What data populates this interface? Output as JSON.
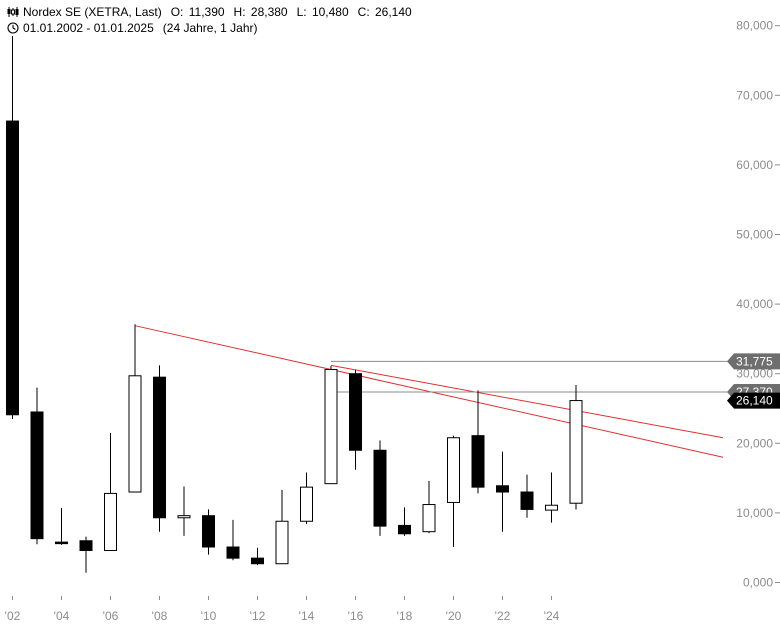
{
  "header": {
    "instrument": "Nordex SE (XETRA, Last)",
    "open_label": "O:",
    "open": "11,390",
    "high_label": "H:",
    "high": "28,380",
    "low_label": "L:",
    "low": "10,480",
    "close_label": "C:",
    "close": "26,140",
    "period": "01.01.2002 - 01.01.2025",
    "span": "(24 Jahre, 1 Jahr)",
    "icons": [
      "candlestick-chart-icon",
      "clock-icon"
    ]
  },
  "colors": {
    "bear_body": "#000000",
    "bull_body": "#ffffff",
    "wick": "#000000",
    "trendline": "#e03030",
    "level_line": "#8c8c8c",
    "level_tag": "#6e6e6e",
    "last_tag": "#000000",
    "axis_text": "#8c8c8c"
  },
  "chart_data": {
    "type": "candlestick",
    "interval": "yearly",
    "x_tick_labels": [
      "'02",
      "'04",
      "'06",
      "'08",
      "'10",
      "'12",
      "'14",
      "'16",
      "'18",
      "'20",
      "'22",
      "'24"
    ],
    "x_tick_years": [
      2002,
      2004,
      2006,
      2008,
      2010,
      2012,
      2014,
      2016,
      2018,
      2020,
      2022,
      2024
    ],
    "y_tick_labels": [
      "0,000",
      "10,000",
      "20,000",
      "30,000",
      "40,000",
      "50,000",
      "60,000",
      "70,000",
      "80,000"
    ],
    "y_ticks": [
      0,
      10,
      20,
      30,
      40,
      50,
      60,
      70,
      80
    ],
    "ylim": [
      -2.5,
      82
    ],
    "grid": false,
    "candles": [
      {
        "year": 2002,
        "open": 66.3,
        "high": 78.5,
        "low": 23.5,
        "close": 24.1
      },
      {
        "year": 2003,
        "open": 24.5,
        "high": 28.0,
        "low": 5.5,
        "close": 6.3
      },
      {
        "year": 2004,
        "open": 5.8,
        "high": 10.7,
        "low": 5.4,
        "close": 5.6
      },
      {
        "year": 2005,
        "open": 6.0,
        "high": 6.6,
        "low": 1.4,
        "close": 4.6
      },
      {
        "year": 2006,
        "open": 4.6,
        "high": 21.5,
        "low": 4.6,
        "close": 12.8
      },
      {
        "year": 2007,
        "open": 13.0,
        "high": 37.1,
        "low": 13.0,
        "close": 29.7
      },
      {
        "year": 2008,
        "open": 29.5,
        "high": 31.2,
        "low": 7.3,
        "close": 9.3
      },
      {
        "year": 2009,
        "open": 9.3,
        "high": 13.8,
        "low": 6.7,
        "close": 9.6
      },
      {
        "year": 2010,
        "open": 9.6,
        "high": 10.5,
        "low": 4.0,
        "close": 5.1
      },
      {
        "year": 2011,
        "open": 5.1,
        "high": 9.0,
        "low": 3.2,
        "close": 3.5
      },
      {
        "year": 2012,
        "open": 3.5,
        "high": 5.0,
        "low": 2.5,
        "close": 2.7
      },
      {
        "year": 2013,
        "open": 2.7,
        "high": 13.3,
        "low": 2.7,
        "close": 8.8
      },
      {
        "year": 2014,
        "open": 8.8,
        "high": 15.8,
        "low": 8.4,
        "close": 13.7
      },
      {
        "year": 2015,
        "open": 14.2,
        "high": 31.1,
        "low": 14.2,
        "close": 30.6
      },
      {
        "year": 2016,
        "open": 30.0,
        "high": 30.6,
        "low": 16.2,
        "close": 19.0
      },
      {
        "year": 2017,
        "open": 19.0,
        "high": 20.4,
        "low": 6.7,
        "close": 8.1
      },
      {
        "year": 2018,
        "open": 8.2,
        "high": 10.8,
        "low": 6.7,
        "close": 7.0
      },
      {
        "year": 2019,
        "open": 7.3,
        "high": 14.6,
        "low": 7.1,
        "close": 11.2
      },
      {
        "year": 2020,
        "open": 11.5,
        "high": 21.1,
        "low": 5.1,
        "close": 20.8
      },
      {
        "year": 2021,
        "open": 21.1,
        "high": 27.6,
        "low": 12.8,
        "close": 13.7
      },
      {
        "year": 2022,
        "open": 13.9,
        "high": 18.8,
        "low": 7.3,
        "close": 13.0
      },
      {
        "year": 2023,
        "open": 13.0,
        "high": 15.5,
        "low": 9.3,
        "close": 10.5
      },
      {
        "year": 2024,
        "open": 10.4,
        "high": 15.8,
        "low": 8.6,
        "close": 11.1
      },
      {
        "year": 2025,
        "open": 11.39,
        "high": 28.38,
        "low": 10.48,
        "close": 26.14
      }
    ],
    "trendlines": [
      {
        "from": {
          "year": 2007,
          "value": 36.9
        },
        "to": {
          "year": 2031,
          "value": 18.0
        }
      },
      {
        "from": {
          "year": 2015,
          "value": 31.2
        },
        "to": {
          "year": 2031,
          "value": 20.8
        }
      }
    ],
    "levels": [
      {
        "value": 31.775,
        "label": "31,775",
        "style": "level"
      },
      {
        "value": 27.37,
        "label": "27,370",
        "style": "level"
      }
    ],
    "last_price": {
      "value": 26.14,
      "label": "26,140"
    }
  }
}
